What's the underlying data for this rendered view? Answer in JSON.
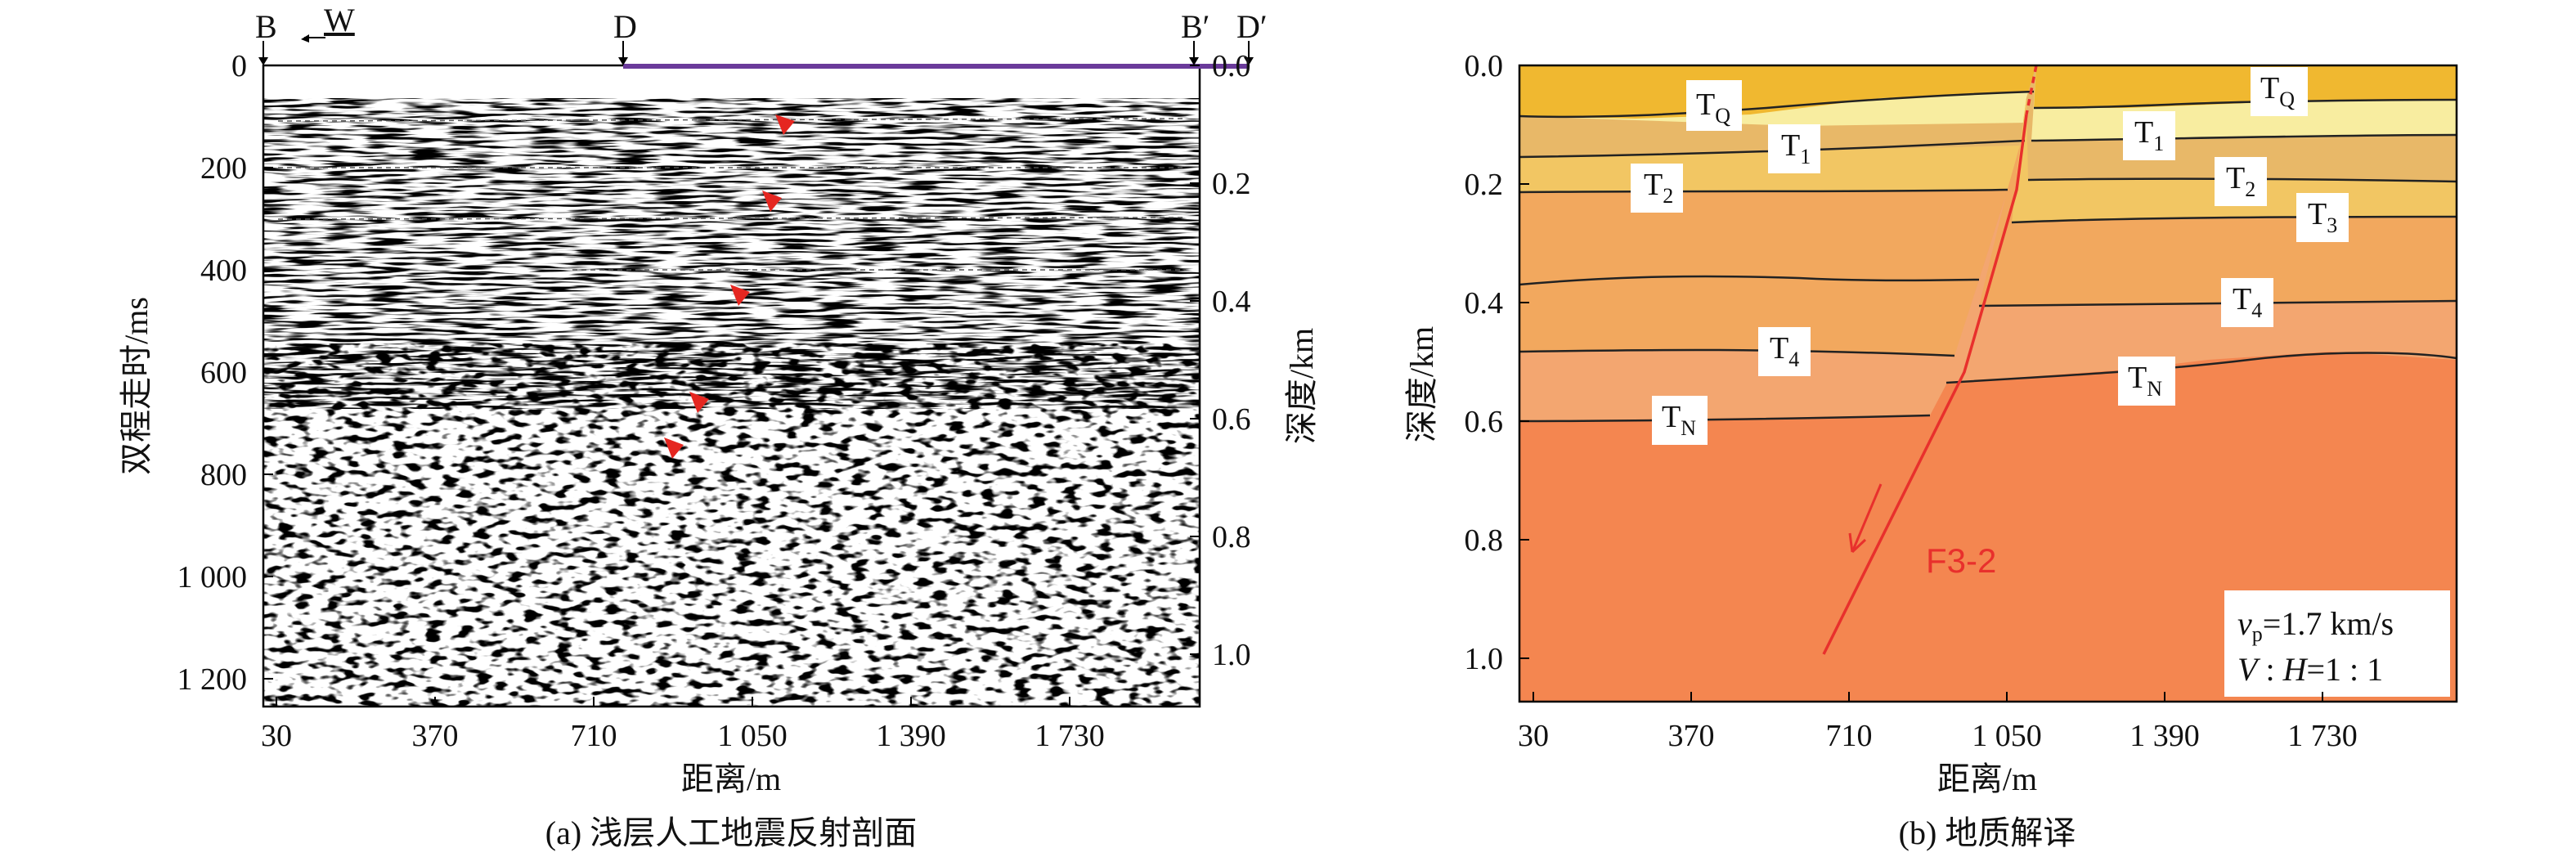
{
  "panel_a": {
    "caption": "(a) 浅层人工地震反射剖面",
    "top_markers": [
      "B",
      "W",
      "D",
      "B′",
      "D′"
    ],
    "xlabel": "距离/m",
    "ylabel_left": "双程走时/ms",
    "ylabel_right": "深度/km",
    "x_ticks": [
      "30",
      "370",
      "710",
      "1 050",
      "1 390",
      "1 730"
    ],
    "y_left_ticks": [
      "0",
      "200",
      "400",
      "600",
      "800",
      "1 000",
      "1 200"
    ],
    "y_right_ticks": [
      "0.0",
      "0.2",
      "0.4",
      "0.6",
      "0.8",
      "1.0"
    ]
  },
  "panel_b": {
    "caption": "(b) 地质解译",
    "xlabel": "距离/m",
    "ylabel": "深度/km",
    "x_ticks": [
      "30",
      "370",
      "710",
      "1 050",
      "1 390",
      "1 730"
    ],
    "y_ticks": [
      "0.0",
      "0.2",
      "0.4",
      "0.6",
      "0.8",
      "1.0"
    ],
    "fault_label": "F3-2",
    "legend_vp": "vp=1.7 km/s",
    "legend_ratio": "V : H=1 : 1",
    "layer_labels_left": [
      "TQ",
      "T1",
      "T2",
      "T4",
      "TN"
    ],
    "layer_labels_right": [
      "TQ",
      "T1",
      "T2",
      "T3",
      "T4",
      "TN"
    ],
    "colors": {
      "layer_q": "#f0b830",
      "layer_1": "#f8eda0",
      "layer_2": "#e8b868",
      "layer_3": "#f2c663",
      "layer_4": "#f2a85e",
      "layer_5": "#f3a670",
      "layer_n": "#f48650",
      "fault": "#e8302c"
    }
  },
  "chart_data": [
    {
      "type": "other",
      "title": "(a) 浅层人工地震反射剖面",
      "xlabel": "距离/m",
      "ylabel": "双程走时/ms",
      "ylabel_right": "深度/km",
      "xlim": [
        0,
        2000
      ],
      "ylim": [
        0,
        1250
      ],
      "right_ylim_km": [
        0.0,
        1.06
      ],
      "fault_markers_ms": [
        110,
        260,
        440,
        650,
        740
      ]
    },
    {
      "type": "other",
      "title": "(b) 地质解译",
      "xlabel": "距离/m",
      "ylabel": "深度/km",
      "xlim": [
        0,
        2000
      ],
      "ylim": [
        0,
        1.07
      ],
      "horizons_left_depth_km": {
        "TQ": 0.08,
        "T1": 0.15,
        "T2": 0.21,
        "T4": 0.48,
        "TN": 0.6
      },
      "horizons_right_depth_km": {
        "TQ": 0.06,
        "T1": 0.12,
        "T2": 0.19,
        "T3": 0.26,
        "T4": 0.4,
        "TN": 0.49
      },
      "fault": {
        "name": "F3-2",
        "top_x_m": 1080,
        "top_depth_km": 0.0,
        "bottom_x_m": 650,
        "bottom_depth_km": 1.0
      }
    }
  ]
}
